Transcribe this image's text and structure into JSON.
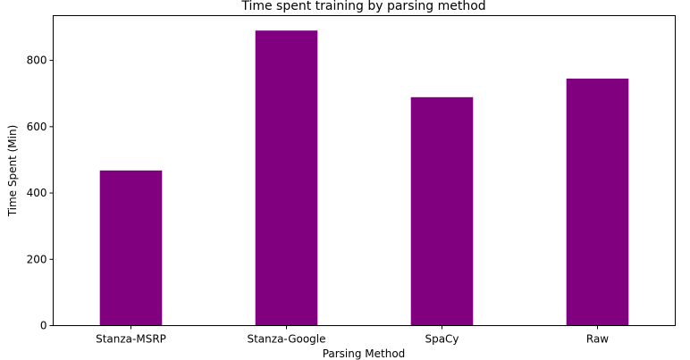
{
  "chart_data": {
    "type": "bar",
    "title": "Time spent training by parsing method",
    "xlabel": "Parsing Method",
    "ylabel": "Time Spent (Min)",
    "categories": [
      "Stanza-MSRP",
      "Stanza-Google",
      "SpaCy",
      "Raw"
    ],
    "values": [
      468,
      890,
      689,
      745
    ],
    "ylim": [
      0,
      935
    ],
    "yticks": [
      0,
      200,
      400,
      600,
      800
    ],
    "bar_color": "#800080",
    "grid": false,
    "legend": "none"
  }
}
